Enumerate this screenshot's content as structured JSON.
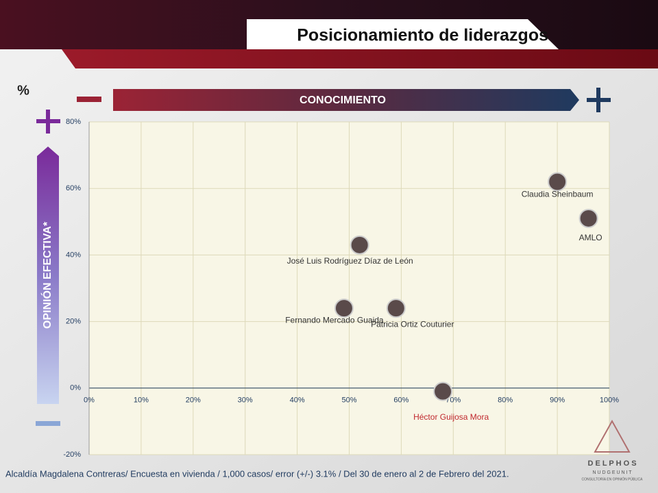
{
  "header": {
    "title": "Posicionamiento de liderazgos"
  },
  "chart_data": {
    "type": "scatter",
    "y_unit_label": "%",
    "x_axis_label": "CONOCIMIENTO",
    "y_axis_label": "OPINIÓN EFECTIVA*",
    "labels": [
      "Claudia Sheinbaum",
      "AMLO",
      "José Luis Rodríguez Díaz de León",
      "Fernando Mercado Guaida",
      "Patricia Ortiz Couturier",
      "Héctor Guijosa Mora"
    ],
    "x": [
      90,
      96,
      52,
      49,
      59,
      68
    ],
    "values": [
      62,
      51,
      43,
      24,
      24,
      -1
    ],
    "label_colors": [
      "#333333",
      "#333333",
      "#333333",
      "#333333",
      "#333333",
      "#c0272d"
    ],
    "marker_color": "#5a4a4a",
    "xlim": [
      0,
      100
    ],
    "xticks": [
      {
        "value": 0,
        "label": "0%"
      },
      {
        "value": 10,
        "label": "10%"
      },
      {
        "value": 20,
        "label": "20%"
      },
      {
        "value": 30,
        "label": "30%"
      },
      {
        "value": 40,
        "label": "40%"
      },
      {
        "value": 50,
        "label": "50%"
      },
      {
        "value": 60,
        "label": "60%"
      },
      {
        "value": 70,
        "label": "70%"
      },
      {
        "value": 80,
        "label": "80%"
      },
      {
        "value": 90,
        "label": "90%"
      },
      {
        "value": 100,
        "label": "100%"
      }
    ],
    "ylim": [
      -20,
      80
    ],
    "yticks": [
      {
        "value": -20,
        "label": "-20%"
      },
      {
        "value": 0,
        "label": "0%"
      },
      {
        "value": 20,
        "label": "20%"
      },
      {
        "value": 40,
        "label": "40%"
      },
      {
        "value": 60,
        "label": "60%"
      },
      {
        "value": 80,
        "label": "80%"
      }
    ],
    "grid": true
  },
  "footer": {
    "note": "Alcaldía Magdalena  Contreras/ Encuesta en vivienda  / 1,000 casos/ error (+/-) 3.1% / Del 30 de enero al 2 de Febrero del 2021.",
    "logo": "D E L P H O S",
    "logo_sub": "N U D G E   U N I T",
    "logo_tag": "CONSULTORÍA EN OPINIÓN PÚBLICA"
  }
}
